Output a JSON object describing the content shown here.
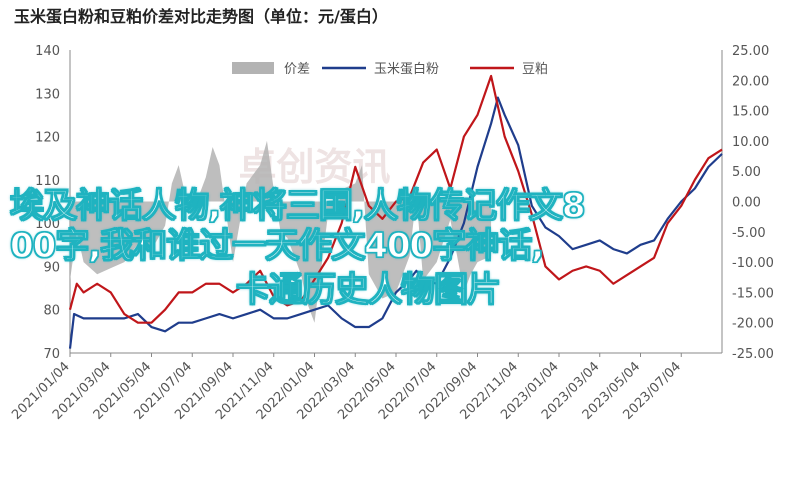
{
  "chart_data": {
    "type": "line",
    "title": "玉米蛋白粉和豆粕价差对比走势图（单位：元/蛋白）",
    "left_axis": {
      "ticks": [
        70,
        80,
        90,
        100,
        110,
        120,
        130,
        140
      ],
      "ylim": [
        70,
        140
      ]
    },
    "right_axis": {
      "ticks": [
        "25.00",
        "20.00",
        "15.00",
        "10.00",
        "5.00",
        "0.00",
        "-5.00",
        "-10.00",
        "-15.00",
        "-20.00",
        "-25.00"
      ],
      "ylim": [
        -25,
        25
      ]
    },
    "x_ticks": [
      "2021/01/04",
      "2021/03/04",
      "2021/05/04",
      "2021/07/04",
      "2021/09/04",
      "2021/11/04",
      "2022/01/04",
      "2022/03/04",
      "2022/05/04",
      "2022/07/04",
      "2022/09/04",
      "2022/11/04",
      "2023/01/04",
      "2023/03/04",
      "2023/05/04",
      "2023/07/04"
    ],
    "x_range_months": [
      0,
      31
    ],
    "legend": [
      "价差",
      "玉米蛋白粉",
      "豆粕"
    ],
    "series": [
      {
        "name": "价差",
        "axis": "right",
        "type": "area",
        "color": "#b3b3b3",
        "points": [
          [
            0,
            -13
          ],
          [
            0.5,
            -5
          ],
          [
            1,
            -10
          ],
          [
            2,
            -12
          ],
          [
            3,
            -11
          ],
          [
            4,
            -10
          ],
          [
            5,
            -7
          ],
          [
            6,
            -8
          ],
          [
            7,
            -4
          ],
          [
            7.5,
            3
          ],
          [
            8,
            6
          ],
          [
            8.5,
            1
          ],
          [
            9,
            -2
          ],
          [
            10,
            4
          ],
          [
            10.5,
            9
          ],
          [
            11,
            6
          ],
          [
            12,
            -10
          ],
          [
            13,
            3
          ],
          [
            14,
            6
          ],
          [
            14.5,
            10
          ],
          [
            15,
            2
          ],
          [
            15.5,
            -5
          ],
          [
            16,
            -6
          ],
          [
            17,
            -12
          ],
          [
            17.5,
            -17
          ],
          [
            18,
            -20
          ],
          [
            19,
            -2
          ],
          [
            19.5,
            -3
          ],
          [
            20,
            2
          ],
          [
            21,
            3
          ],
          [
            21.5,
            6
          ],
          [
            22,
            -12
          ],
          [
            23,
            -16
          ],
          [
            24,
            -15
          ],
          [
            25,
            -9
          ],
          [
            25.5,
            1
          ],
          [
            26,
            -13
          ],
          [
            27,
            -10
          ],
          [
            28,
            -3
          ],
          [
            29,
            -15
          ],
          [
            29.5,
            -12
          ],
          [
            30,
            -10
          ],
          [
            31,
            -9
          ]
        ]
      },
      {
        "name": "玉米蛋白粉",
        "axis": "left",
        "color": "#1f3d8c",
        "points": [
          [
            0,
            71
          ],
          [
            0.3,
            79
          ],
          [
            1,
            78
          ],
          [
            2,
            78
          ],
          [
            3,
            78
          ],
          [
            4,
            78
          ],
          [
            5,
            79
          ],
          [
            6,
            76
          ],
          [
            7,
            75
          ],
          [
            8,
            77
          ],
          [
            9,
            77
          ],
          [
            10,
            78
          ],
          [
            11,
            79
          ],
          [
            12,
            78
          ],
          [
            13,
            79
          ],
          [
            14,
            80
          ],
          [
            15,
            78
          ],
          [
            16,
            78
          ],
          [
            17,
            79
          ],
          [
            18,
            80
          ],
          [
            19,
            81
          ],
          [
            20,
            78
          ],
          [
            21,
            76
          ],
          [
            22,
            76
          ],
          [
            23,
            78
          ],
          [
            24,
            84
          ],
          [
            25,
            87
          ],
          [
            25.5,
            89
          ],
          [
            26,
            87
          ],
          [
            27,
            86
          ],
          [
            28,
            92
          ],
          [
            29,
            100
          ],
          [
            30,
            113
          ],
          [
            30.5,
            118
          ],
          [
            31,
            123
          ],
          [
            31.5,
            129
          ],
          [
            32,
            125
          ],
          [
            33,
            118
          ],
          [
            34,
            104
          ],
          [
            35,
            99
          ],
          [
            36,
            97
          ],
          [
            37,
            94
          ],
          [
            38,
            95
          ],
          [
            39,
            96
          ],
          [
            40,
            94
          ],
          [
            41,
            93
          ],
          [
            42,
            95
          ],
          [
            43,
            96
          ],
          [
            44,
            101
          ],
          [
            45,
            105
          ],
          [
            46,
            108
          ],
          [
            47,
            113
          ],
          [
            48,
            116
          ]
        ]
      },
      {
        "name": "豆粕",
        "axis": "left",
        "color": "#c0161a",
        "points": [
          [
            0,
            80
          ],
          [
            0.5,
            86
          ],
          [
            1,
            84
          ],
          [
            2,
            86
          ],
          [
            3,
            84
          ],
          [
            4,
            79
          ],
          [
            5,
            77
          ],
          [
            6,
            77
          ],
          [
            7,
            80
          ],
          [
            8,
            84
          ],
          [
            9,
            84
          ],
          [
            10,
            86
          ],
          [
            11,
            86
          ],
          [
            12,
            84
          ],
          [
            13,
            86
          ],
          [
            14,
            89
          ],
          [
            15,
            83
          ],
          [
            16,
            81
          ],
          [
            17,
            82
          ],
          [
            18,
            87
          ],
          [
            19,
            92
          ],
          [
            20,
            100
          ],
          [
            21,
            113
          ],
          [
            22,
            104
          ],
          [
            23,
            101
          ],
          [
            24,
            105
          ],
          [
            25,
            106
          ],
          [
            26,
            114
          ],
          [
            27,
            117
          ],
          [
            28,
            108
          ],
          [
            29,
            120
          ],
          [
            30,
            125
          ],
          [
            31,
            134
          ],
          [
            32,
            120
          ],
          [
            33,
            112
          ],
          [
            34,
            102
          ],
          [
            35,
            90
          ],
          [
            36,
            87
          ],
          [
            37,
            89
          ],
          [
            38,
            90
          ],
          [
            39,
            89
          ],
          [
            40,
            86
          ],
          [
            41,
            88
          ],
          [
            42,
            90
          ],
          [
            43,
            92
          ],
          [
            44,
            100
          ],
          [
            45,
            104
          ],
          [
            46,
            110
          ],
          [
            47,
            115
          ],
          [
            48,
            117
          ]
        ]
      }
    ]
  },
  "overlay": {
    "line1": "埃及神话人物,神将三国,人物传记作文800字,我和谁过一天作文400字神话,",
    "line1_a": "埃及神话人物,神将三国,人物传记作文8",
    "line1_b": "00字,我和谁过一天作文400字神话,",
    "line2": "卡通历史人物图片"
  },
  "watermark": "卓创资讯"
}
